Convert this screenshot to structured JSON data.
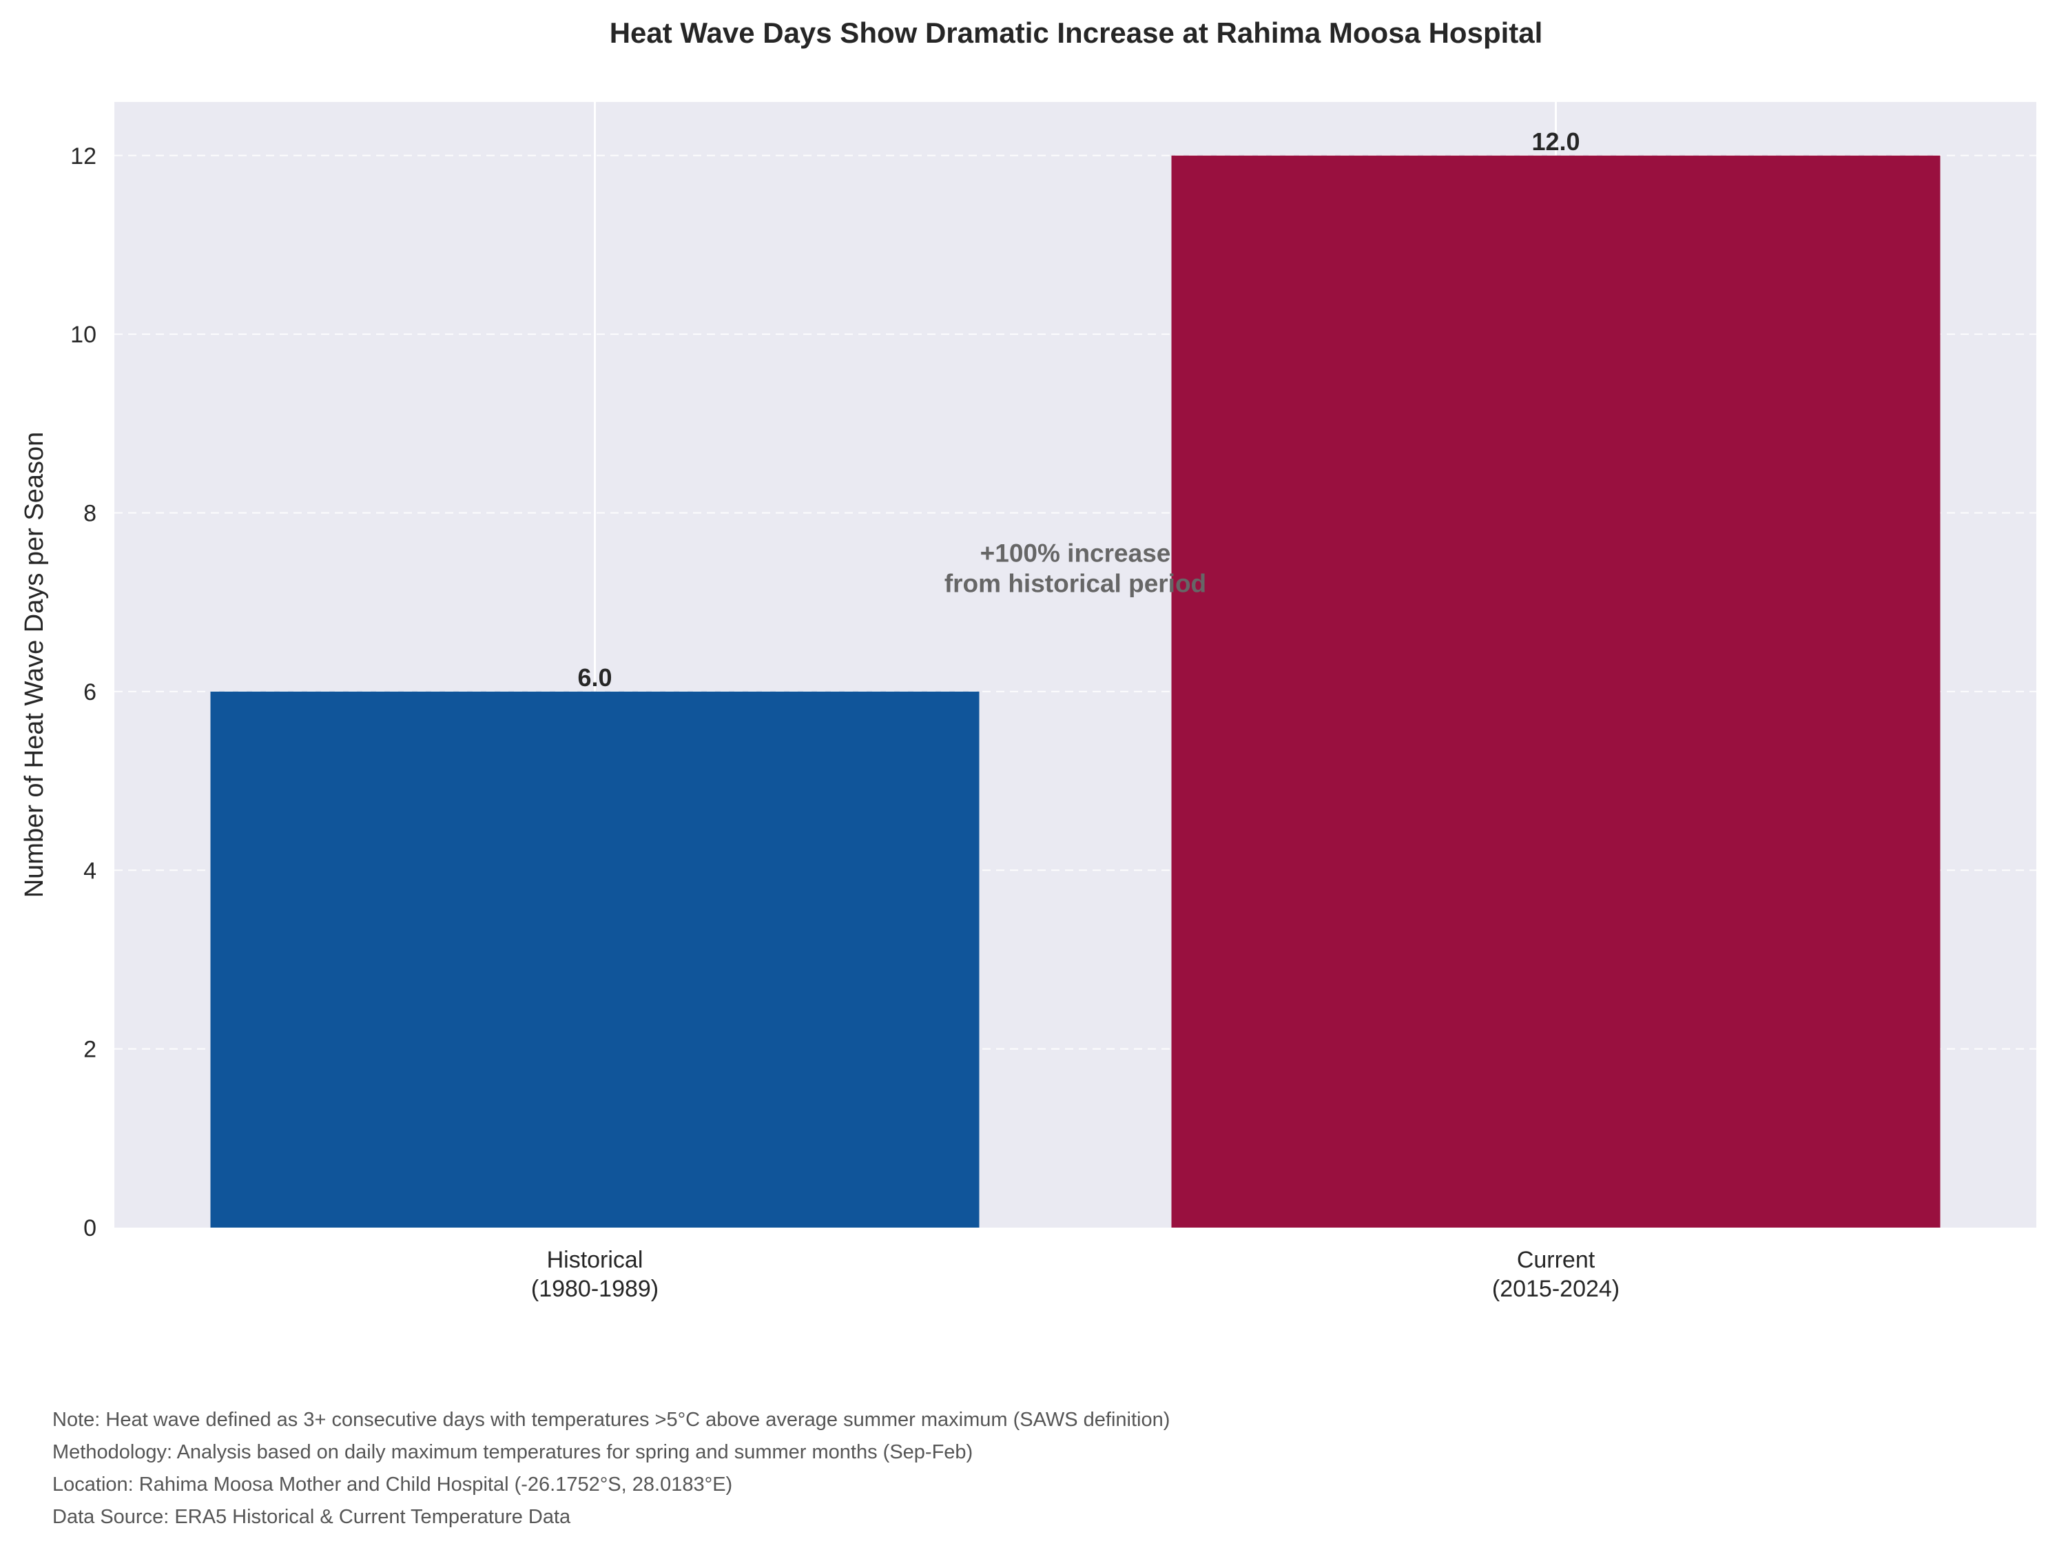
{
  "chart_data": {
    "type": "bar",
    "title": "Heat Wave Days Show Dramatic Increase at Rahima Moosa Hospital",
    "xlabel": "",
    "ylabel": "Number of Heat Wave Days per Season",
    "categories": [
      "Historical\n(1980-1989)",
      "Current\n(2015-2024)"
    ],
    "values": [
      6.0,
      12.0
    ],
    "value_labels": [
      "6.0",
      "12.0"
    ],
    "bar_colors": [
      "#10559a",
      "#99103f"
    ],
    "ylim": [
      0,
      12.6
    ],
    "yticks": [
      0,
      2,
      4,
      6,
      8,
      10,
      12
    ],
    "grid": "dashed horizontal",
    "annotation": "+100% increase\nfrom historical period"
  },
  "notes": [
    "Note: Heat wave defined as 3+ consecutive days with temperatures >5°C above average summer maximum (SAWS definition)",
    "Methodology: Analysis based on daily maximum temperatures for spring and summer months (Sep-Feb)",
    "Location: Rahima Moosa Mother and Child Hospital (-26.1752°S, 28.0183°E)",
    "Data Source: ERA5 Historical & Current Temperature Data"
  ],
  "colors": {
    "plot_background": "#eaeaf2",
    "grid": "#ffffff",
    "text": "#262626",
    "annotation": "#666666",
    "note_text": "#555555"
  }
}
